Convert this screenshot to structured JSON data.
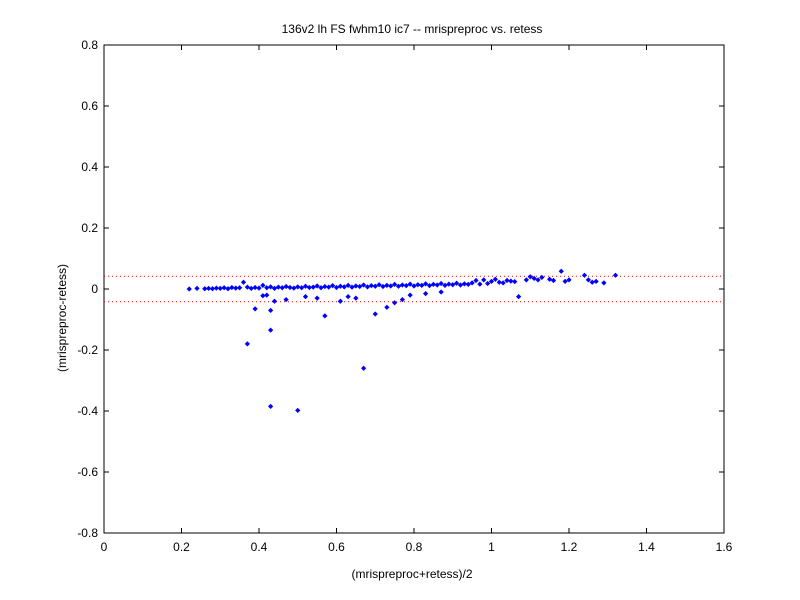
{
  "chart_data": {
    "type": "scatter",
    "title": "136v2 lh FS fwhm10 ic7 -- mrispreproc vs. retess",
    "xlabel": "(mrispreproc+retess)/2",
    "ylabel": "(mrispreproc-retess)",
    "xlim": [
      0,
      1.6
    ],
    "ylim": [
      -0.8,
      0.8
    ],
    "x_ticks": [
      0,
      0.2,
      0.4,
      0.6,
      0.8,
      1,
      1.2,
      1.4,
      1.6
    ],
    "x_tick_labels": [
      "0",
      "0.2",
      "0.4",
      "0.6",
      "0.8",
      "1",
      "1.2",
      "1.4",
      "1.6"
    ],
    "y_ticks": [
      -0.8,
      -0.6,
      -0.4,
      -0.2,
      0,
      0.2,
      0.4,
      0.6,
      0.8
    ],
    "y_tick_labels": [
      "-0.8",
      "-0.6",
      "-0.4",
      "-0.2",
      "0",
      "0.2",
      "0.4",
      "0.6",
      "0.8"
    ],
    "grid": false,
    "point_color": "#0000ff",
    "reference_line_color": "#ff0000",
    "reference_lines_y": [
      0.042,
      -0.042
    ],
    "points": [
      [
        0.22,
        0.0
      ],
      [
        0.24,
        0.002
      ],
      [
        0.26,
        0.001
      ],
      [
        0.27,
        0.002
      ],
      [
        0.28,
        0.001
      ],
      [
        0.29,
        0.003
      ],
      [
        0.3,
        0.002
      ],
      [
        0.31,
        0.004
      ],
      [
        0.32,
        0.001
      ],
      [
        0.33,
        0.005
      ],
      [
        0.34,
        0.003
      ],
      [
        0.35,
        0.004
      ],
      [
        0.36,
        0.022
      ],
      [
        0.37,
        0.006
      ],
      [
        0.38,
        0.002
      ],
      [
        0.39,
        0.005
      ],
      [
        0.4,
        0.003
      ],
      [
        0.41,
        0.012
      ],
      [
        0.42,
        0.004
      ],
      [
        0.43,
        0.007
      ],
      [
        0.44,
        0.002
      ],
      [
        0.45,
        0.006
      ],
      [
        0.46,
        0.004
      ],
      [
        0.47,
        0.008
      ],
      [
        0.48,
        0.005
      ],
      [
        0.49,
        0.003
      ],
      [
        0.5,
        0.007
      ],
      [
        0.51,
        0.004
      ],
      [
        0.52,
        0.009
      ],
      [
        0.53,
        0.005
      ],
      [
        0.54,
        0.006
      ],
      [
        0.55,
        0.01
      ],
      [
        0.56,
        0.004
      ],
      [
        0.57,
        0.008
      ],
      [
        0.58,
        0.006
      ],
      [
        0.59,
        0.011
      ],
      [
        0.6,
        0.005
      ],
      [
        0.61,
        0.009
      ],
      [
        0.62,
        0.007
      ],
      [
        0.63,
        0.012
      ],
      [
        0.64,
        0.006
      ],
      [
        0.65,
        0.01
      ],
      [
        0.66,
        0.008
      ],
      [
        0.67,
        0.013
      ],
      [
        0.68,
        0.007
      ],
      [
        0.69,
        0.011
      ],
      [
        0.7,
        0.009
      ],
      [
        0.71,
        0.014
      ],
      [
        0.72,
        0.008
      ],
      [
        0.73,
        0.012
      ],
      [
        0.74,
        0.01
      ],
      [
        0.75,
        0.015
      ],
      [
        0.76,
        0.009
      ],
      [
        0.77,
        0.013
      ],
      [
        0.78,
        0.011
      ],
      [
        0.79,
        0.016
      ],
      [
        0.8,
        0.01
      ],
      [
        0.81,
        0.014
      ],
      [
        0.82,
        0.012
      ],
      [
        0.83,
        0.017
      ],
      [
        0.84,
        0.011
      ],
      [
        0.85,
        0.015
      ],
      [
        0.86,
        0.013
      ],
      [
        0.87,
        0.018
      ],
      [
        0.88,
        0.012
      ],
      [
        0.89,
        0.016
      ],
      [
        0.9,
        0.014
      ],
      [
        0.91,
        0.019
      ],
      [
        0.92,
        0.013
      ],
      [
        0.93,
        0.017
      ],
      [
        0.94,
        0.015
      ],
      [
        0.95,
        0.02
      ],
      [
        0.96,
        0.028
      ],
      [
        0.97,
        0.016
      ],
      [
        0.98,
        0.03
      ],
      [
        0.99,
        0.018
      ],
      [
        1.0,
        0.025
      ],
      [
        1.01,
        0.032
      ],
      [
        1.02,
        0.022
      ],
      [
        1.03,
        0.02
      ],
      [
        1.04,
        0.028
      ],
      [
        1.05,
        0.026
      ],
      [
        1.06,
        0.024
      ],
      [
        1.09,
        0.03
      ],
      [
        1.1,
        0.04
      ],
      [
        1.11,
        0.035
      ],
      [
        1.12,
        0.03
      ],
      [
        1.13,
        0.038
      ],
      [
        1.15,
        0.032
      ],
      [
        1.16,
        0.028
      ],
      [
        1.18,
        0.058
      ],
      [
        1.19,
        0.025
      ],
      [
        1.2,
        0.03
      ],
      [
        1.24,
        0.045
      ],
      [
        1.25,
        0.03
      ],
      [
        1.26,
        0.022
      ],
      [
        1.27,
        0.025
      ],
      [
        1.29,
        0.02
      ],
      [
        1.32,
        0.045
      ],
      [
        0.39,
        -0.065
      ],
      [
        0.41,
        -0.022
      ],
      [
        0.42,
        -0.02
      ],
      [
        0.43,
        -0.07
      ],
      [
        0.43,
        -0.135
      ],
      [
        0.37,
        -0.18
      ],
      [
        0.44,
        -0.04
      ],
      [
        0.47,
        -0.035
      ],
      [
        0.52,
        -0.025
      ],
      [
        0.55,
        -0.03
      ],
      [
        0.57,
        -0.088
      ],
      [
        0.61,
        -0.04
      ],
      [
        0.63,
        -0.025
      ],
      [
        0.65,
        -0.03
      ],
      [
        0.7,
        -0.082
      ],
      [
        0.73,
        -0.06
      ],
      [
        0.75,
        -0.045
      ],
      [
        0.77,
        -0.035
      ],
      [
        0.79,
        -0.02
      ],
      [
        0.83,
        -0.015
      ],
      [
        0.87,
        -0.01
      ],
      [
        1.07,
        -0.025
      ],
      [
        0.67,
        -0.26
      ],
      [
        0.43,
        -0.385
      ],
      [
        0.5,
        -0.398
      ]
    ]
  }
}
